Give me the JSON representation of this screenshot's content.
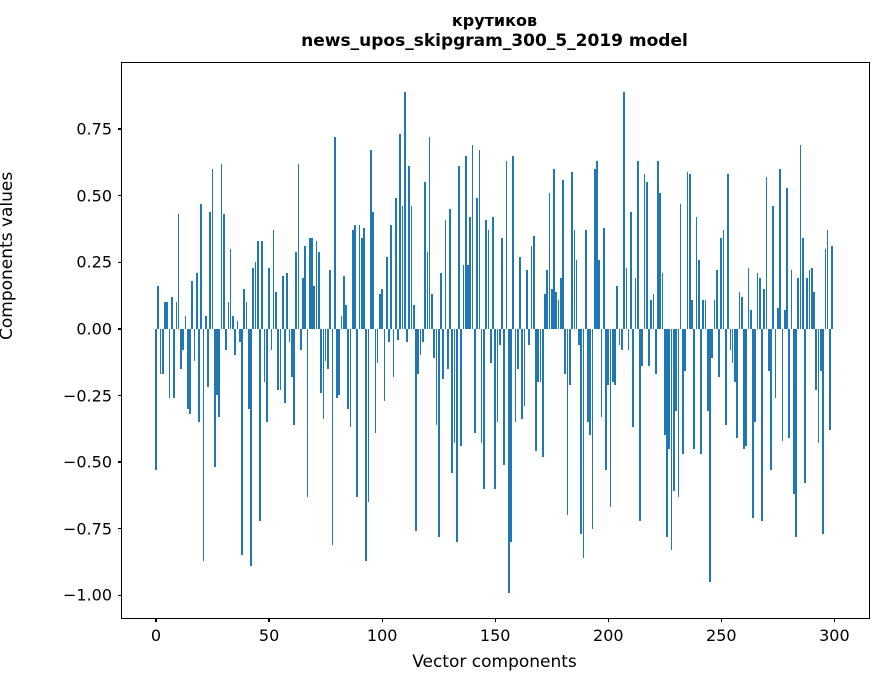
{
  "chart_data": {
    "type": "bar",
    "title_line1": "крутиков",
    "title_line2": "news_upos_skipgram_300_5_2019 model",
    "xlabel": "Vector components",
    "ylabel": "Components values",
    "bar_color": "#1f77b4",
    "n_components": 300,
    "xlim": [
      -15.05,
      315.3
    ],
    "ylim": [
      -1.085,
      0.998
    ],
    "grid": false,
    "legend": null,
    "xtick_values": [
      0,
      50,
      100,
      150,
      200,
      250,
      300
    ],
    "xtick_labels": [
      "0",
      "50",
      "100",
      "150",
      "200",
      "250",
      "300"
    ],
    "ytick_values": [
      0.75,
      0.5,
      0.25,
      0.0,
      -0.25,
      -0.5,
      -0.75,
      -1.0
    ],
    "ytick_labels": [
      "0.75",
      "0.50",
      "0.25",
      "0.00",
      "−0.25",
      "−0.50",
      "−0.75",
      "−1.00"
    ],
    "values": [
      -0.53,
      0.16,
      -0.17,
      -0.17,
      0.1,
      0.1,
      -0.26,
      0.12,
      -0.26,
      0.1,
      0.43,
      -0.15,
      -0.08,
      0.05,
      -0.3,
      -0.32,
      0.18,
      -0.12,
      0.21,
      -0.35,
      0.47,
      -0.87,
      0.05,
      -0.22,
      0.44,
      0.6,
      -0.52,
      -0.25,
      -0.33,
      0.62,
      0.43,
      -0.08,
      0.1,
      0.3,
      0.05,
      -0.1,
      0.03,
      -0.05,
      -0.85,
      0.15,
      0.1,
      -0.3,
      -0.89,
      0.23,
      0.25,
      0.33,
      -0.72,
      0.33,
      -0.2,
      -0.35,
      0.23,
      -0.08,
      0.37,
      0.14,
      -0.23,
      -0.23,
      0.2,
      -0.28,
      0.21,
      -0.05,
      -0.18,
      -0.36,
      0.29,
      0.62,
      -0.08,
      0.19,
      0.31,
      -0.63,
      0.34,
      0.34,
      0.16,
      0.33,
      0.29,
      -0.24,
      -0.34,
      -0.12,
      -0.15,
      0.22,
      -0.81,
      0.72,
      -0.26,
      -0.25,
      0.05,
      0.2,
      0.09,
      -0.3,
      -0.37,
      0.37,
      0.39,
      -0.63,
      0.39,
      0.34,
      0.38,
      -0.87,
      -0.65,
      0.67,
      0.44,
      -0.39,
      -0.13,
      0.13,
      0.15,
      -0.27,
      0.27,
      -0.05,
      0.39,
      -0.18,
      0.49,
      -0.04,
      0.73,
      0.46,
      0.89,
      -0.05,
      0.61,
      0.46,
      0.09,
      -0.76,
      -0.17,
      -0.1,
      -0.05,
      0.55,
      0.29,
      0.72,
      0.13,
      -0.11,
      -0.36,
      -0.78,
      0.21,
      -0.19,
      0.41,
      -0.15,
      0.45,
      -0.54,
      -0.43,
      -0.8,
      0.61,
      -0.44,
      0.24,
      0.65,
      0.24,
      0.42,
      0.69,
      -0.39,
      0.49,
      0.67,
      -0.43,
      -0.6,
      0.41,
      0.37,
      -0.13,
      0.42,
      -0.6,
      -0.35,
      -0.06,
      0.34,
      -0.51,
      0.63,
      -0.99,
      -0.8,
      0.65,
      -0.35,
      -0.15,
      0.27,
      -0.34,
      -0.29,
      0.22,
      -0.06,
      0.31,
      0.35,
      -0.46,
      -0.2,
      -0.2,
      -0.48,
      0.13,
      0.22,
      0.51,
      0.15,
      0.6,
      0.14,
      0.11,
      0.19,
      0.56,
      -0.17,
      -0.7,
      -0.21,
      0.59,
      0.37,
      0.26,
      -0.06,
      -0.77,
      -0.86,
      0.37,
      -0.35,
      -0.4,
      -0.75,
      0.6,
      0.63,
      0.26,
      -0.33,
      0.38,
      -0.53,
      -0.21,
      -0.67,
      -0.2,
      -0.21,
      0.16,
      -0.06,
      -0.08,
      0.89,
      0.23,
      -0.08,
      0.44,
      -0.37,
      0.19,
      0.63,
      -0.72,
      -0.14,
      0.58,
      0.55,
      -0.14,
      0.11,
      0.13,
      -0.17,
      0.63,
      0.51,
      0.21,
      -0.4,
      -0.78,
      -0.45,
      -0.83,
      -0.61,
      -0.31,
      -0.63,
      0.47,
      -0.47,
      -0.16,
      0.59,
      0.58,
      0.11,
      -0.45,
      0.42,
      0.26,
      -0.47,
      0.11,
      0.11,
      -0.31,
      -0.95,
      -0.11,
      0.11,
      0.22,
      -0.18,
      0.34,
      0.37,
      -0.36,
      0.58,
      -0.08,
      -0.13,
      -0.2,
      -0.41,
      0.14,
      0.12,
      -0.45,
      -0.44,
      0.23,
      0.07,
      -0.71,
      -0.35,
      0.21,
      0.19,
      -0.72,
      0.15,
      0.57,
      -0.16,
      -0.53,
      0.46,
      -0.26,
      0.08,
      0.6,
      -0.42,
      0.07,
      0.53,
      -0.41,
      0.22,
      -0.62,
      -0.78,
      0.19,
      0.69,
      0.34,
      -0.58,
      0.19,
      0.22,
      0.23,
      0.14,
      -0.23,
      -0.43,
      -0.16,
      -0.77,
      0.3,
      0.37,
      -0.38,
      0.31
    ]
  }
}
